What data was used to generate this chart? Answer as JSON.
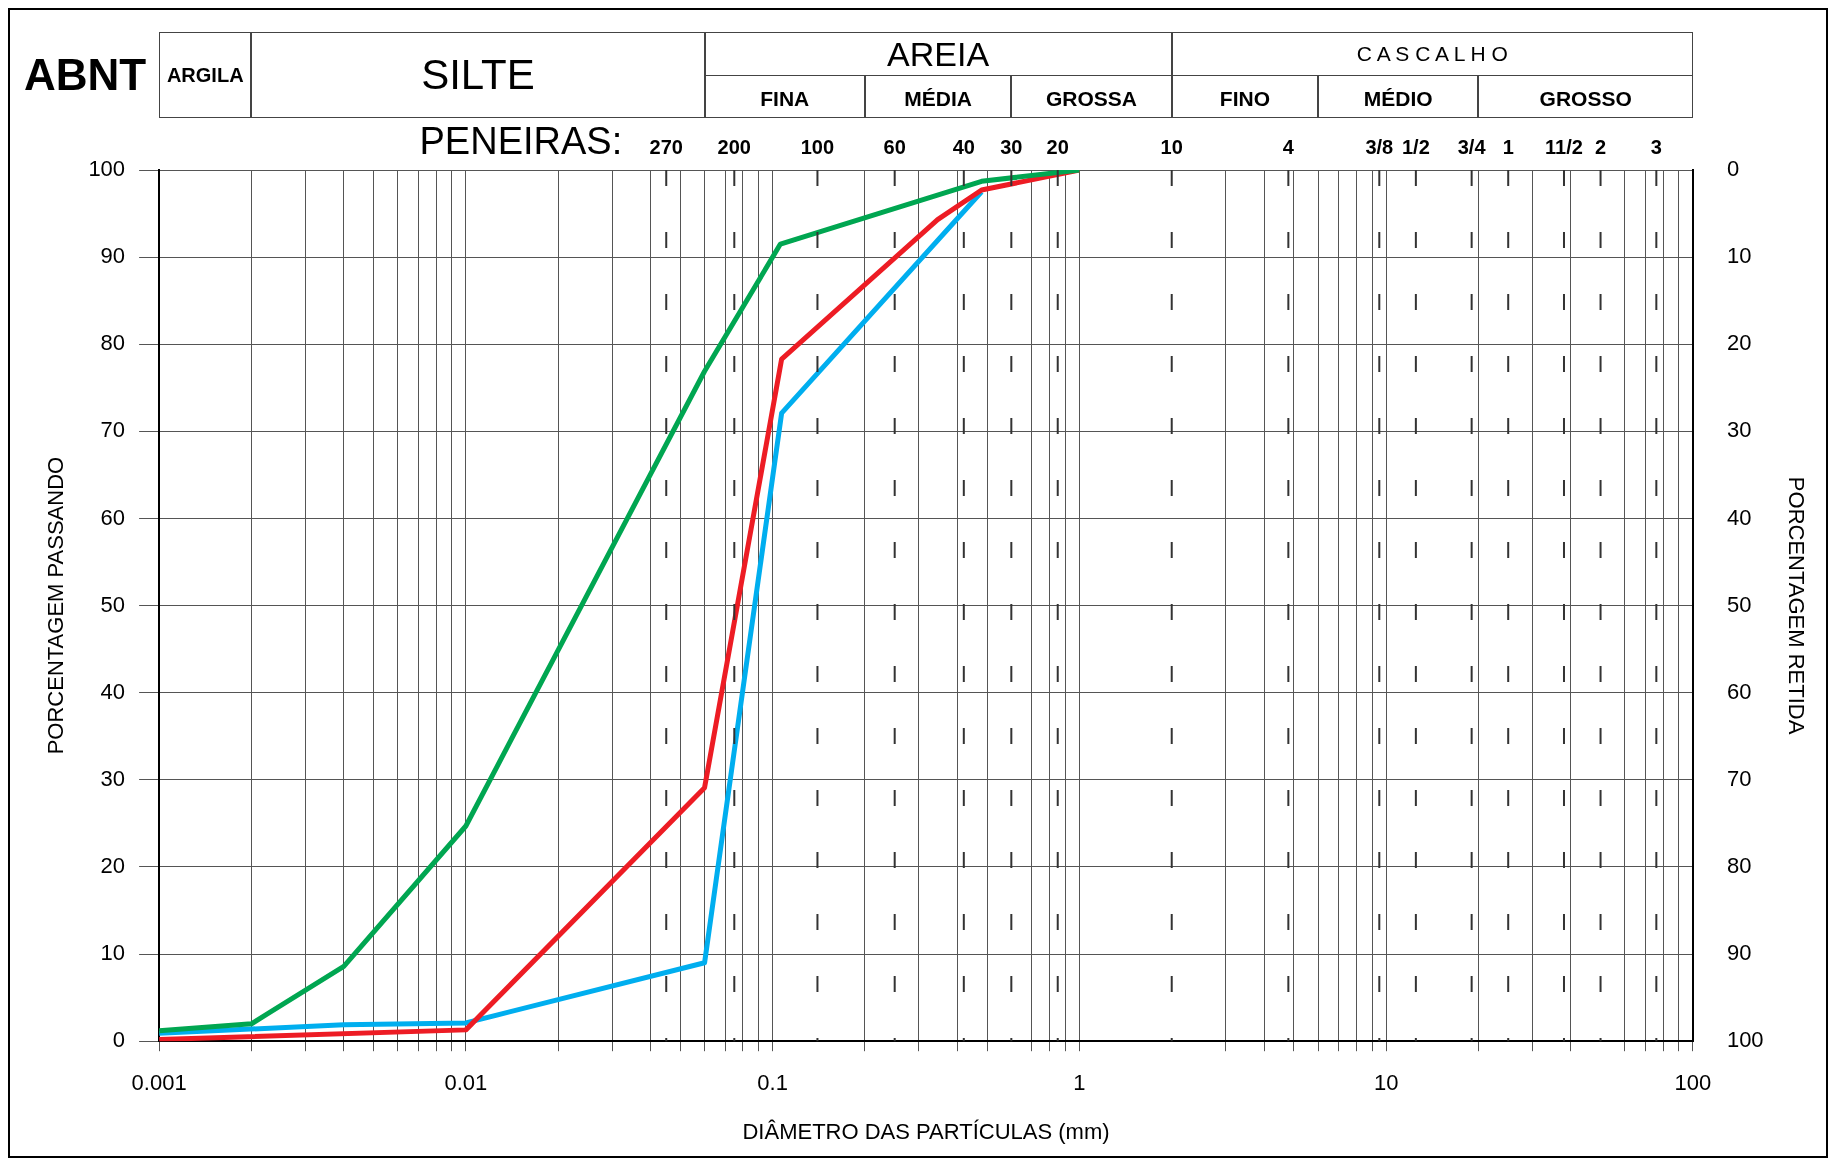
{
  "chart_data": {
    "type": "line",
    "xlabel": "DIÂMETRO DAS PARTÍCULAS (mm)",
    "ylabel": "PORCENTAGEM PASSANDO",
    "y2label": "PORCENTAGEM RETIDA",
    "annotations": [
      "ABNT",
      "ARGILA",
      "SILTE",
      "AREIA",
      "FINA",
      "MÉDIA",
      "GROSSA",
      "C A S C A L H O",
      "FINO",
      "MÉDIO",
      "GROSSO",
      "PENEIRAS:",
      "270",
      "200",
      "100",
      "60",
      "40",
      "30",
      "20",
      "10",
      "4",
      "3/8",
      "1/2",
      "3/4",
      "1",
      "11/2",
      "2",
      "3"
    ],
    "log": "x",
    "grid": true,
    "legend": false,
    "marker": "none",
    "line_style": "solid",
    "xlim": [
      0.001,
      100
    ],
    "xticks": [
      0.001,
      {
        "value": 0.002,
        "label": null
      },
      {
        "value": 0.003,
        "label": null
      },
      {
        "value": 0.004,
        "label": null
      },
      {
        "value": 0.005,
        "label": null
      },
      {
        "value": 0.006,
        "label": null
      },
      {
        "value": 0.007,
        "label": null
      },
      {
        "value": 0.008,
        "label": null
      },
      {
        "value": 0.009,
        "label": null
      },
      0.01,
      {
        "value": 0.02,
        "label": null
      },
      {
        "value": 0.03,
        "label": null
      },
      {
        "value": 0.04,
        "label": null
      },
      {
        "value": 0.05,
        "label": null
      },
      {
        "value": 0.06,
        "label": null
      },
      {
        "value": 0.07,
        "label": null
      },
      {
        "value": 0.08,
        "label": null
      },
      {
        "value": 0.09,
        "label": null
      },
      0.1,
      {
        "value": 0.2,
        "label": null
      },
      {
        "value": 0.3,
        "label": null
      },
      {
        "value": 0.4,
        "label": null
      },
      {
        "value": 0.5,
        "label": null
      },
      {
        "value": 0.7,
        "label": null
      },
      {
        "value": 0.8,
        "label": null
      },
      {
        "value": 0.9,
        "label": null
      },
      1,
      {
        "value": 3,
        "label": null
      },
      {
        "value": 4,
        "label": null
      },
      {
        "value": 5,
        "label": null
      },
      {
        "value": 6,
        "label": null
      },
      {
        "value": 7,
        "label": null
      },
      {
        "value": 8,
        "label": null
      },
      {
        "value": 9,
        "label": null
      },
      10,
      {
        "value": 20,
        "label": null
      },
      {
        "value": 30,
        "label": null
      },
      {
        "value": 40,
        "label": null
      },
      {
        "value": 60,
        "label": null
      },
      {
        "value": 70,
        "label": null
      },
      {
        "value": 80,
        "label": null
      },
      {
        "value": 90,
        "label": null
      },
      100
    ],
    "ylim": [
      0,
      100
    ],
    "yticks": [
      0,
      10,
      20,
      30,
      40,
      50,
      60,
      70,
      80,
      90,
      100
    ],
    "y2lim": [
      100,
      0
    ],
    "y2ticks": [
      0,
      10,
      20,
      30,
      40,
      50,
      60,
      70,
      80,
      90,
      100
    ],
    "ref_lines": [
      {
        "axis": "x",
        "value": 0.045,
        "line_style": "dashed"
      },
      {
        "axis": "x",
        "value": 0.075,
        "line_style": "dashed"
      },
      {
        "axis": "x",
        "value": 0.14,
        "line_style": "dashed"
      },
      {
        "axis": "x",
        "value": 0.25,
        "line_style": "dashed"
      },
      {
        "axis": "x",
        "value": 0.42,
        "line_style": "dashed"
      },
      {
        "axis": "x",
        "value": 0.6,
        "line_style": "dashed"
      },
      {
        "axis": "x",
        "value": 0.85,
        "line_style": "dashed"
      },
      {
        "axis": "x",
        "value": 2,
        "line_style": "dashed"
      },
      {
        "axis": "x",
        "value": 4.8,
        "line_style": "dashed"
      },
      {
        "axis": "x",
        "value": 9.5,
        "line_style": "dashed"
      },
      {
        "axis": "x",
        "value": 12.5,
        "line_style": "dashed"
      },
      {
        "axis": "x",
        "value": 19,
        "line_style": "dashed"
      },
      {
        "axis": "x",
        "value": 25,
        "line_style": "dashed"
      },
      {
        "axis": "x",
        "value": 38,
        "line_style": "dashed"
      },
      {
        "axis": "x",
        "value": 50,
        "line_style": "dashed"
      },
      {
        "axis": "x",
        "value": 76,
        "line_style": "dashed"
      }
    ],
    "series": [
      {
        "color": "#00a651",
        "x": [
          0.001,
          0.002,
          0.004,
          0.01,
          0.06,
          0.106,
          0.48,
          1
        ],
        "values": [
          1.2,
          2,
          8.6,
          24.7,
          76.9,
          91.5,
          98.7,
          100
        ]
      },
      {
        "color": "#ed1c24",
        "x": [
          0.001,
          0.01,
          0.06,
          0.107,
          0.345,
          0.48,
          1
        ],
        "values": [
          0.2,
          1.3,
          29.1,
          78.3,
          94.3,
          97.7,
          100
        ]
      },
      {
        "color": "#00aeef",
        "x": [
          0.001,
          0.004,
          0.01,
          0.06,
          0.107,
          0.48
        ],
        "values": [
          0.9,
          1.9,
          2.1,
          9,
          72.1,
          97.5
        ]
      }
    ]
  }
}
